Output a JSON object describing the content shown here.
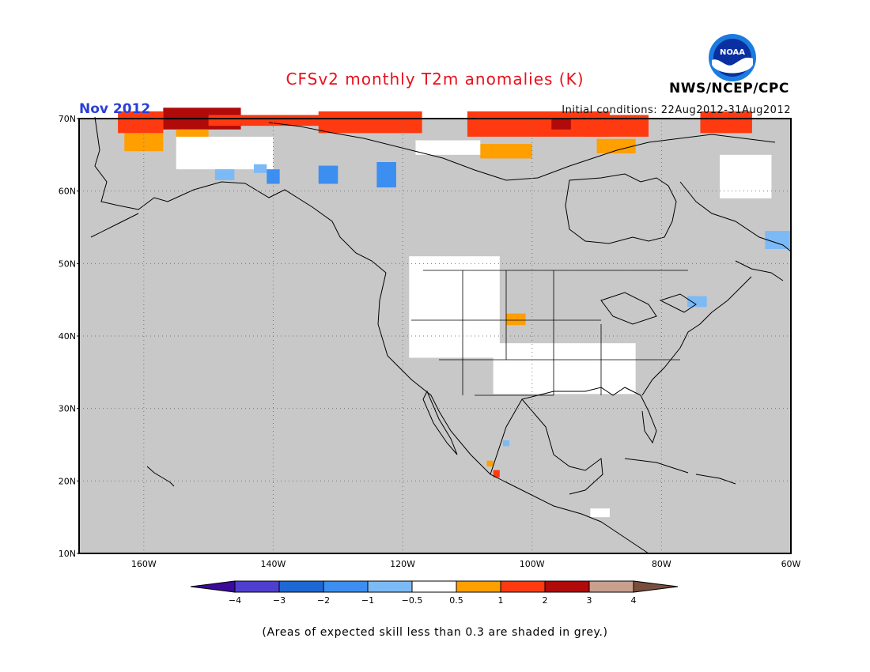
{
  "title": "CFSv2 monthly T2m anomalies (K)",
  "month_label": "Nov 2012",
  "initial_conditions": "Initial conditions: 22Aug2012-31Aug2012",
  "agency": "NWS/NCEP/CPC",
  "logo_text": "NOAA",
  "footnote": "(Areas of expected skill less than 0.3 are shaded in grey.)",
  "colors": {
    "title": "#e8101c",
    "month": "#2a3fd6",
    "grey_mask": "#c8c8c8",
    "ocean_bg": "#c8c8c8",
    "land_line": "#000000",
    "grid_line": "#777777"
  },
  "map_extent": {
    "lon_min": -170,
    "lon_max": -60,
    "lat_min": 10,
    "lat_max": 70
  },
  "lat_ticks": [
    "10N",
    "20N",
    "30N",
    "40N",
    "50N",
    "60N",
    "70N"
  ],
  "lon_ticks": [
    "160W",
    "140W",
    "120W",
    "100W",
    "80W",
    "60W"
  ],
  "colorbar": {
    "labels": [
      "−4",
      "−3",
      "−2",
      "−1",
      "−0.5",
      "0.5",
      "1",
      "2",
      "3",
      "4"
    ],
    "colors": [
      "#3a0a9a",
      "#4f3fd0",
      "#1e68d6",
      "#3c8ef0",
      "#7cbaf6",
      "#ffffff",
      "#ff9f00",
      "#ff3a10",
      "#b00a0a",
      "#c8a08e",
      "#7a4e3e"
    ]
  },
  "anomaly_cells": [
    {
      "lon": -157,
      "lat": 68.5,
      "w": 12,
      "h": 3,
      "cls": "3"
    },
    {
      "lon": -164,
      "lat": 68,
      "w": 7,
      "h": 3,
      "cls": "2"
    },
    {
      "lon": -150,
      "lat": 69,
      "w": 20,
      "h": 1.5,
      "cls": "2"
    },
    {
      "lon": -133,
      "lat": 68,
      "w": 16,
      "h": 3,
      "cls": "2"
    },
    {
      "lon": -110,
      "lat": 67.5,
      "w": 22,
      "h": 3.5,
      "cls": "2"
    },
    {
      "lon": -92,
      "lat": 67.5,
      "w": 10,
      "h": 3,
      "cls": "2"
    },
    {
      "lon": -74,
      "lat": 68,
      "w": 8,
      "h": 3,
      "cls": "2"
    },
    {
      "lon": -97,
      "lat": 68.5,
      "w": 3,
      "h": 1.5,
      "cls": "3"
    },
    {
      "lon": -163,
      "lat": 65.5,
      "w": 6,
      "h": 2.5,
      "cls": "1"
    },
    {
      "lon": -155,
      "lat": 66.5,
      "w": 5,
      "h": 2,
      "cls": "1"
    },
    {
      "lon": -108,
      "lat": 64.5,
      "w": 8,
      "h": 2,
      "cls": "1"
    },
    {
      "lon": -90,
      "lat": 65.2,
      "w": 6,
      "h": 2,
      "cls": "1"
    },
    {
      "lon": -155,
      "lat": 63,
      "w": 15,
      "h": 4.5,
      "cls": "0.5"
    },
    {
      "lon": -118,
      "lat": 65,
      "w": 10,
      "h": 2,
      "cls": "0.5"
    },
    {
      "lon": -149,
      "lat": 61.5,
      "w": 3,
      "h": 1.5,
      "cls": "-0.5"
    },
    {
      "lon": -143,
      "lat": 62.5,
      "w": 2,
      "h": 1.2,
      "cls": "-0.5"
    },
    {
      "lon": -133,
      "lat": 61,
      "w": 3,
      "h": 2.5,
      "cls": "-1"
    },
    {
      "lon": -141,
      "lat": 61,
      "w": 2,
      "h": 2,
      "cls": "-1"
    },
    {
      "lon": -124,
      "lat": 60.5,
      "w": 3,
      "h": 3.5,
      "cls": "-1"
    },
    {
      "lon": -71,
      "lat": 59,
      "w": 8,
      "h": 6,
      "cls": "0.5"
    },
    {
      "lon": -64,
      "lat": 52,
      "w": 4,
      "h": 2.5,
      "cls": "-0.5"
    },
    {
      "lon": -76,
      "lat": 44,
      "w": 3,
      "h": 1.5,
      "cls": "-0.5"
    },
    {
      "lon": -119,
      "lat": 37,
      "w": 14,
      "h": 14,
      "cls": "0.5"
    },
    {
      "lon": -106,
      "lat": 32,
      "w": 22,
      "h": 7,
      "cls": "0.5"
    },
    {
      "lon": -104,
      "lat": 41.5,
      "w": 3,
      "h": 1.6,
      "cls": "1"
    },
    {
      "lon": -106,
      "lat": 20.5,
      "w": 1,
      "h": 1,
      "cls": "2"
    },
    {
      "lon": -107,
      "lat": 22,
      "w": 1,
      "h": 0.8,
      "cls": "1"
    },
    {
      "lon": -104.5,
      "lat": 24.8,
      "w": 1,
      "h": 0.8,
      "cls": "-0.5"
    },
    {
      "lon": -91,
      "lat": 15,
      "w": 3,
      "h": 1.2,
      "cls": "0.5"
    }
  ]
}
